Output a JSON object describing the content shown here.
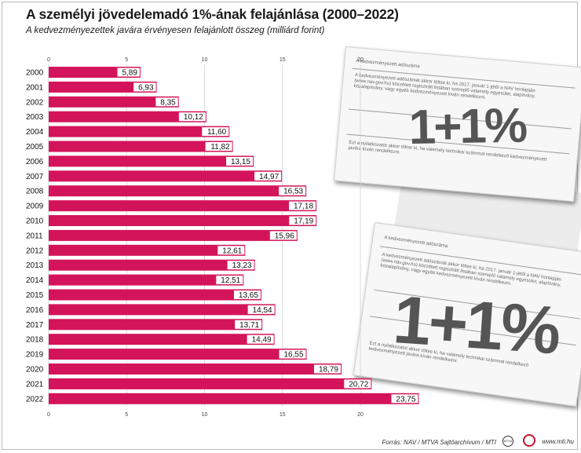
{
  "title": "A személyi jövedelemadó 1%-ának felajánlása (2000–2022)",
  "subtitle": "A kedvezményezettek javára érvényesen felajánlott összeg (milliárd forint)",
  "chart_data": {
    "type": "bar",
    "orientation": "horizontal",
    "categories": [
      "2000",
      "2001",
      "2002",
      "2003",
      "2004",
      "2005",
      "2006",
      "2007",
      "2008",
      "2009",
      "2010",
      "2011",
      "2012",
      "2013",
      "2014",
      "2015",
      "2016",
      "2017",
      "2018",
      "2019",
      "2020",
      "2021",
      "2022"
    ],
    "values": [
      5.89,
      6.93,
      8.35,
      10.12,
      11.6,
      11.82,
      13.15,
      14.97,
      16.53,
      17.18,
      17.19,
      15.96,
      12.61,
      13.23,
      12.51,
      13.65,
      14.54,
      13.71,
      14.49,
      16.55,
      18.79,
      20.72,
      23.75
    ],
    "value_labels": [
      "5,89",
      "6,93",
      "8,35",
      "10,12",
      "11,60",
      "11,82",
      "13,15",
      "14,97",
      "16,53",
      "17,18",
      "17,19",
      "15,96",
      "12,61",
      "13,23",
      "12,51",
      "13,65",
      "14,54",
      "13,71",
      "14,49",
      "16,55",
      "18,79",
      "20,72",
      "23,75"
    ],
    "xlim": [
      0,
      24
    ],
    "ticks": [
      0,
      5,
      10,
      15,
      20
    ],
    "tick_labels": [
      "0",
      "5",
      "10",
      "15",
      "20"
    ],
    "grid": true,
    "bar_color": "#d4145a"
  },
  "decor": {
    "form_heading": "A kedvezményezett adószáma",
    "form_big_text": "1+1%",
    "form_body": "A kedvezményezett adószámát akkor töltse ki, ha 2017. január 1-jétől a NAV honlapján (www.nav.gov.hu) közzétett regisztrált listában szereplő valamely egyesület, alapítvány, közalapítvány, vagy egyéb kedvezményezett kíván rendelkezni.",
    "form_body2": "Ezt a nyilatkozatot akkor töltse ki, ha valamely technikai számmal rendelkező kedvezményezett javára kíván rendelkezni."
  },
  "footer": {
    "source": "Forrás: NAV / MTVA Sajtóarchívum / MTI",
    "logo1": "MTVA",
    "site": "www.mti.hu"
  }
}
